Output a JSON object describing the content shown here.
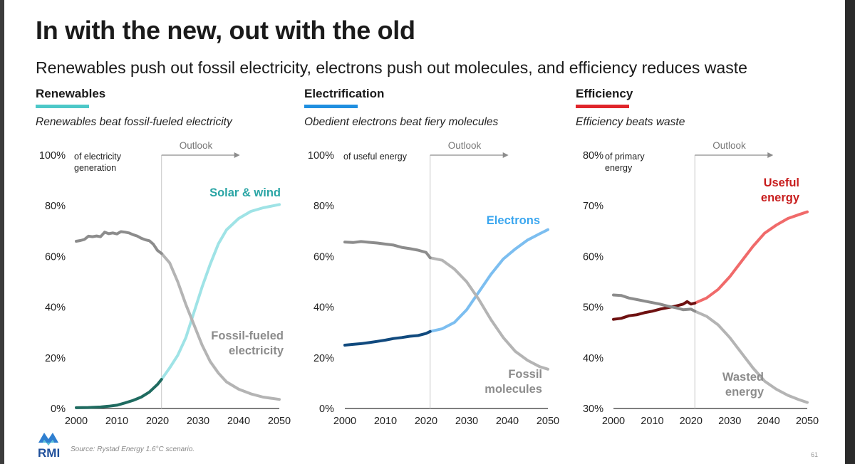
{
  "title": "In with the new, out with the old",
  "subtitle": "Renewables push out fossil electricity, electrons push out molecules, and efficiency reduces waste",
  "source": "Source: Rystad Energy 1.6°C scenario.",
  "page_number": "61",
  "logo_text": "RMI",
  "colors": {
    "renewables_accent": "#4dc8c8",
    "electrification_accent": "#1f8fe0",
    "efficiency_accent": "#e0252b",
    "fossil_gray": "#8c8c8c"
  },
  "panels": [
    {
      "heading": "Renewables",
      "italic_subtitle": "Renewables beat fossil-fueled electricity",
      "unit_label": [
        "of electricity",
        "generation"
      ],
      "outlook_label": "Outlook",
      "series_labels": [
        {
          "lines": [
            "Solar & wind"
          ],
          "color": "#2aa5a5"
        },
        {
          "lines": [
            "Fossil-fueled",
            "electricity"
          ],
          "color": "#8c8c8c"
        }
      ]
    },
    {
      "heading": "Electrification",
      "italic_subtitle": "Obedient electrons beat fiery molecules",
      "unit_label": [
        "of useful energy"
      ],
      "outlook_label": "Outlook",
      "series_labels": [
        {
          "lines": [
            "Electrons"
          ],
          "color": "#3aa6ef"
        },
        {
          "lines": [
            "Fossil",
            "molecules"
          ],
          "color": "#8c8c8c"
        }
      ]
    },
    {
      "heading": "Efficiency",
      "italic_subtitle": "Efficiency beats waste",
      "unit_label": [
        "of primary",
        "energy"
      ],
      "outlook_label": "Outlook",
      "series_labels": [
        {
          "lines": [
            "Useful",
            "energy"
          ],
          "color": "#c81e1e"
        },
        {
          "lines": [
            "Wasted",
            "energy"
          ],
          "color": "#8c8c8c"
        }
      ]
    }
  ],
  "chart_data": [
    {
      "type": "line",
      "title": "Renewables beat fossil-fueled electricity",
      "ylabel": "of electricity generation",
      "xlim": [
        2000,
        2050
      ],
      "ylim": [
        0,
        100
      ],
      "y_ticks": [
        "0%",
        "20%",
        "40%",
        "60%",
        "80%",
        "100%"
      ],
      "x_ticks": [
        "2000",
        "2010",
        "2020",
        "2030",
        "2040",
        "2050"
      ],
      "outlook_start": 2021,
      "series": [
        {
          "name": "Solar & wind",
          "historical_color": "#1f6b60",
          "outlook_color": "#9fe3e6",
          "historical": [
            [
              2000,
              0.3
            ],
            [
              2003,
              0.4
            ],
            [
              2006,
              0.6
            ],
            [
              2008,
              0.9
            ],
            [
              2010,
              1.3
            ],
            [
              2012,
              2.2
            ],
            [
              2014,
              3.2
            ],
            [
              2016,
              4.5
            ],
            [
              2018,
              6.5
            ],
            [
              2020,
              9.5
            ],
            [
              2021,
              11.5
            ]
          ],
          "outlook": [
            [
              2021,
              11.5
            ],
            [
              2023,
              16
            ],
            [
              2025,
              21
            ],
            [
              2027,
              28
            ],
            [
              2029,
              38
            ],
            [
              2031,
              48
            ],
            [
              2033,
              57
            ],
            [
              2035,
              65
            ],
            [
              2037,
              70.5
            ],
            [
              2040,
              75
            ],
            [
              2043,
              77.8
            ],
            [
              2046,
              79.2
            ],
            [
              2050,
              80.5
            ]
          ]
        },
        {
          "name": "Fossil-fueled electricity",
          "historical_color": "#8c8c8c",
          "outlook_color": "#b4b4b4",
          "historical": [
            [
              2000,
              66
            ],
            [
              2001,
              66.3
            ],
            [
              2002,
              66.7
            ],
            [
              2003,
              68
            ],
            [
              2004,
              67.8
            ],
            [
              2005,
              68.1
            ],
            [
              2006,
              67.8
            ],
            [
              2007,
              69.6
            ],
            [
              2008,
              69
            ],
            [
              2009,
              69.3
            ],
            [
              2010,
              68.9
            ],
            [
              2011,
              69.8
            ],
            [
              2012,
              69.6
            ],
            [
              2013,
              69.3
            ],
            [
              2014,
              68.6
            ],
            [
              2015,
              68.1
            ],
            [
              2016,
              67.2
            ],
            [
              2017,
              66.6
            ],
            [
              2018,
              66.2
            ],
            [
              2019,
              64.8
            ],
            [
              2020,
              62.4
            ],
            [
              2021,
              61.2
            ]
          ],
          "outlook": [
            [
              2021,
              61.2
            ],
            [
              2023,
              57.5
            ],
            [
              2025,
              50
            ],
            [
              2027,
              41
            ],
            [
              2029,
              33
            ],
            [
              2031,
              25
            ],
            [
              2033,
              18.5
            ],
            [
              2035,
              14
            ],
            [
              2037,
              10.5
            ],
            [
              2040,
              7.6
            ],
            [
              2043,
              5.8
            ],
            [
              2046,
              4.5
            ],
            [
              2050,
              3.6
            ]
          ]
        }
      ]
    },
    {
      "type": "line",
      "title": "Obedient electrons beat fiery molecules",
      "ylabel": "of useful energy",
      "xlim": [
        2000,
        2050
      ],
      "ylim": [
        0,
        100
      ],
      "y_ticks": [
        "0%",
        "20%",
        "40%",
        "60%",
        "80%",
        "100%"
      ],
      "x_ticks": [
        "2000",
        "2010",
        "2020",
        "2030",
        "2040",
        "2050"
      ],
      "outlook_start": 2021,
      "series": [
        {
          "name": "Electrons",
          "historical_color": "#114a7e",
          "outlook_color": "#7cbef0",
          "historical": [
            [
              2000,
              25
            ],
            [
              2002,
              25.3
            ],
            [
              2004,
              25.6
            ],
            [
              2006,
              26
            ],
            [
              2008,
              26.5
            ],
            [
              2010,
              27
            ],
            [
              2012,
              27.6
            ],
            [
              2014,
              28
            ],
            [
              2016,
              28.5
            ],
            [
              2018,
              28.8
            ],
            [
              2020,
              29.6
            ],
            [
              2021,
              30.4
            ]
          ],
          "outlook": [
            [
              2021,
              30.4
            ],
            [
              2024,
              31.5
            ],
            [
              2027,
              34
            ],
            [
              2030,
              39
            ],
            [
              2033,
              46
            ],
            [
              2036,
              53
            ],
            [
              2039,
              59
            ],
            [
              2042,
              63
            ],
            [
              2045,
              66.5
            ],
            [
              2048,
              69
            ],
            [
              2050,
              70.6
            ]
          ]
        },
        {
          "name": "Fossil molecules",
          "historical_color": "#8c8c8c",
          "outlook_color": "#b4b4b4",
          "historical": [
            [
              2000,
              65.7
            ],
            [
              2002,
              65.5
            ],
            [
              2004,
              65.9
            ],
            [
              2006,
              65.6
            ],
            [
              2008,
              65.3
            ],
            [
              2010,
              64.9
            ],
            [
              2012,
              64.5
            ],
            [
              2014,
              63.6
            ],
            [
              2016,
              63.1
            ],
            [
              2018,
              62.5
            ],
            [
              2020,
              61.6
            ],
            [
              2021,
              59.5
            ]
          ],
          "outlook": [
            [
              2021,
              59.5
            ],
            [
              2024,
              58.5
            ],
            [
              2027,
              55
            ],
            [
              2030,
              50
            ],
            [
              2033,
              43
            ],
            [
              2036,
              35
            ],
            [
              2039,
              28
            ],
            [
              2042,
              22.5
            ],
            [
              2045,
              19
            ],
            [
              2048,
              16.5
            ],
            [
              2050,
              15.5
            ]
          ]
        }
      ]
    },
    {
      "type": "line",
      "title": "Efficiency beats waste",
      "ylabel": "of primary energy",
      "xlim": [
        2000,
        2050
      ],
      "ylim": [
        30,
        80
      ],
      "y_ticks": [
        "30%",
        "40%",
        "50%",
        "60%",
        "70%",
        "80%"
      ],
      "x_ticks": [
        "2000",
        "2010",
        "2020",
        "2030",
        "2040",
        "2050"
      ],
      "outlook_start": 2021,
      "series": [
        {
          "name": "Useful energy",
          "historical_color": "#6e1111",
          "outlook_color": "#f06a6a",
          "historical": [
            [
              2000,
              47.6
            ],
            [
              2002,
              47.8
            ],
            [
              2004,
              48.3
            ],
            [
              2006,
              48.5
            ],
            [
              2008,
              48.9
            ],
            [
              2010,
              49.2
            ],
            [
              2012,
              49.6
            ],
            [
              2014,
              49.9
            ],
            [
              2016,
              50.2
            ],
            [
              2018,
              50.6
            ],
            [
              2019,
              51.1
            ],
            [
              2020,
              50.6
            ],
            [
              2021,
              50.8
            ]
          ],
          "outlook": [
            [
              2021,
              50.8
            ],
            [
              2024,
              51.8
            ],
            [
              2027,
              53.5
            ],
            [
              2030,
              56
            ],
            [
              2033,
              59
            ],
            [
              2036,
              62
            ],
            [
              2039,
              64.6
            ],
            [
              2042,
              66.2
            ],
            [
              2045,
              67.5
            ],
            [
              2048,
              68.3
            ],
            [
              2050,
              68.8
            ]
          ]
        },
        {
          "name": "Wasted energy",
          "historical_color": "#8c8c8c",
          "outlook_color": "#b4b4b4",
          "historical": [
            [
              2000,
              52.4
            ],
            [
              2002,
              52.3
            ],
            [
              2004,
              51.8
            ],
            [
              2006,
              51.5
            ],
            [
              2008,
              51.2
            ],
            [
              2010,
              50.9
            ],
            [
              2012,
              50.6
            ],
            [
              2014,
              50.2
            ],
            [
              2016,
              49.9
            ],
            [
              2018,
              49.5
            ],
            [
              2020,
              49.6
            ],
            [
              2021,
              49.2
            ]
          ],
          "outlook": [
            [
              2021,
              49.2
            ],
            [
              2024,
              48.2
            ],
            [
              2027,
              46.5
            ],
            [
              2030,
              44
            ],
            [
              2033,
              41
            ],
            [
              2036,
              38
            ],
            [
              2039,
              35.4
            ],
            [
              2042,
              33.8
            ],
            [
              2045,
              32.6
            ],
            [
              2048,
              31.7
            ],
            [
              2050,
              31.2
            ]
          ]
        }
      ]
    }
  ]
}
